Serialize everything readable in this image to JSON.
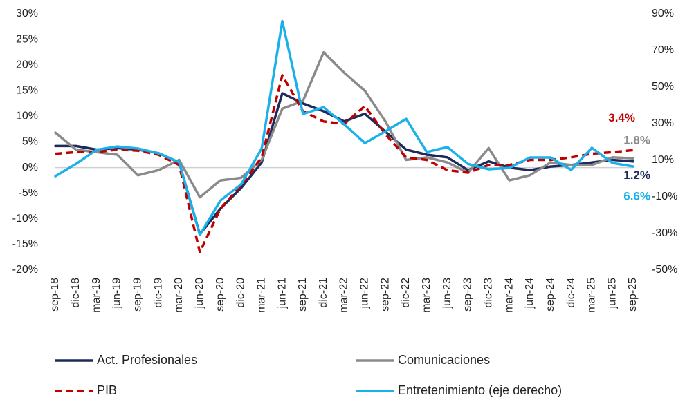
{
  "chart_data": {
    "type": "line",
    "categories": [
      "sep-18",
      "dic-18",
      "mar-19",
      "jun-19",
      "sep-19",
      "dic-19",
      "mar-20",
      "jun-20",
      "sep-20",
      "dic-20",
      "mar-21",
      "jun-21",
      "sep-21",
      "dic-21",
      "mar-22",
      "jun-22",
      "sep-22",
      "dic-22",
      "mar-23",
      "jun-23",
      "sep-23",
      "dic-23",
      "mar-24",
      "jun-24",
      "sep-24",
      "dic-24",
      "mar-25",
      "jun-25",
      "sep-25"
    ],
    "series": [
      {
        "name": "Act. Profesionales",
        "color": "#1f2a5c",
        "dash": false,
        "values": [
          4.2,
          4.2,
          3.5,
          3.8,
          3.5,
          2.8,
          1.0,
          -13,
          -8,
          -4,
          1,
          14.5,
          12.5,
          11,
          9,
          10.5,
          7,
          3.5,
          2.5,
          2,
          -0.5,
          1.2,
          0,
          -0.5,
          0.2,
          0.5,
          1,
          1.5,
          1.2
        ],
        "value_labels": [
          null,
          null,
          null,
          null,
          null,
          null,
          null,
          null,
          null,
          null,
          null,
          null,
          null,
          null,
          null,
          null,
          null,
          null,
          null,
          null,
          null,
          null,
          null,
          null,
          null,
          null,
          null,
          null,
          "1.2%"
        ]
      },
      {
        "name": "Comunicaciones",
        "color": "#8a8a8a",
        "dash": false,
        "values": [
          6.8,
          3.5,
          3.0,
          2.5,
          -1.5,
          -0.5,
          1.5,
          -5.8,
          -2.5,
          -2.0,
          1.5,
          11.5,
          13,
          22.5,
          18.5,
          15,
          9,
          1.5,
          2,
          1,
          -1,
          3.8,
          -2.5,
          -1.5,
          1,
          0.5,
          0.5,
          2,
          1.8
        ],
        "value_labels": [
          null,
          null,
          null,
          null,
          null,
          null,
          null,
          null,
          null,
          null,
          null,
          null,
          null,
          null,
          null,
          null,
          null,
          null,
          null,
          null,
          null,
          null,
          null,
          null,
          null,
          null,
          null,
          null,
          "1.8%"
        ]
      },
      {
        "name": "PIB",
        "color": "#c00000",
        "dash": true,
        "values": [
          2.7,
          3.0,
          3.0,
          3.5,
          3.3,
          2.5,
          0.5,
          -16.5,
          -8,
          -3.5,
          2,
          18,
          11,
          9,
          8.5,
          12,
          6.5,
          2,
          1.5,
          -0.5,
          -1,
          0.5,
          0.5,
          1.5,
          1.5,
          2,
          2.7,
          3,
          3.4
        ],
        "value_labels": [
          null,
          null,
          null,
          null,
          null,
          null,
          null,
          null,
          null,
          null,
          null,
          null,
          null,
          null,
          null,
          null,
          null,
          null,
          null,
          null,
          null,
          null,
          null,
          null,
          null,
          null,
          null,
          null,
          "3.4%"
        ]
      },
      {
        "name": "Entretenimiento (eje derecho)",
        "color": "#1ab0ea",
        "dash": false,
        "axis": "y2",
        "values": [
          1.3,
          8,
          15.7,
          17.5,
          16.4,
          13.8,
          8.9,
          -30.8,
          -12,
          -3.2,
          16.4,
          86,
          35.3,
          39,
          29.6,
          19.4,
          25.8,
          32.6,
          14.5,
          17.2,
          8,
          5.1,
          5.8,
          11.5,
          11.5,
          4.7,
          16.8,
          8.5,
          6.6
        ],
        "value_labels": [
          null,
          null,
          null,
          null,
          null,
          null,
          null,
          null,
          null,
          null,
          null,
          null,
          null,
          null,
          null,
          null,
          null,
          null,
          null,
          null,
          null,
          null,
          null,
          null,
          null,
          null,
          null,
          null,
          "6.6%"
        ]
      }
    ],
    "ylim": [
      -20,
      30
    ],
    "yticks": [
      {
        "value": -20,
        "label": "-20%"
      },
      {
        "value": -15,
        "label": "-15%"
      },
      {
        "value": -10,
        "label": "-10%"
      },
      {
        "value": -5,
        "label": "-5%"
      },
      {
        "value": 0,
        "label": "0%"
      },
      {
        "value": 5,
        "label": "5%"
      },
      {
        "value": 10,
        "label": "10%"
      },
      {
        "value": 15,
        "label": "15%"
      },
      {
        "value": 20,
        "label": "20%"
      },
      {
        "value": 25,
        "label": "25%"
      },
      {
        "value": 30,
        "label": "30%"
      }
    ],
    "y2lim": [
      -50,
      90
    ],
    "y2ticks": [
      {
        "value": -50,
        "label": "-50%"
      },
      {
        "value": -30,
        "label": "-30%"
      },
      {
        "value": -10,
        "label": "-10%"
      },
      {
        "value": 10,
        "label": "10%"
      },
      {
        "value": 30,
        "label": "30%"
      },
      {
        "value": 50,
        "label": "50%"
      },
      {
        "value": 70,
        "label": "70%"
      },
      {
        "value": 90,
        "label": "90%"
      }
    ],
    "zero_line": true
  }
}
